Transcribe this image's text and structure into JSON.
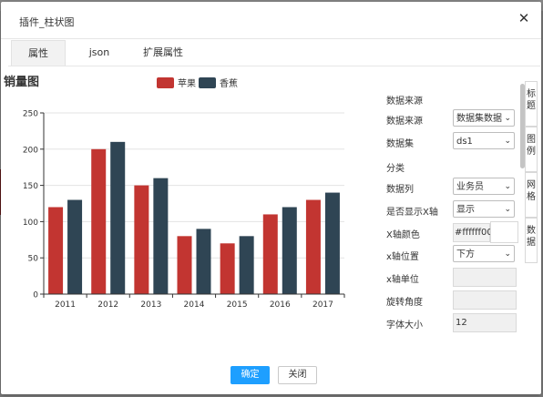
{
  "dialog": {
    "title": "插件_柱状图",
    "close_glyph": "✕"
  },
  "tabs": [
    "属性",
    "json",
    "扩展属性"
  ],
  "chart_data": {
    "type": "bar",
    "title": "销量图",
    "categories": [
      "2011",
      "2012",
      "2013",
      "2014",
      "2015",
      "2016",
      "2017"
    ],
    "series": [
      {
        "name": "苹果",
        "color": "#c23531",
        "values": [
          120,
          200,
          150,
          80,
          70,
          110,
          130
        ]
      },
      {
        "name": "香蕉",
        "color": "#2f4554",
        "values": [
          130,
          210,
          160,
          90,
          80,
          120,
          140
        ]
      }
    ],
    "ylim": [
      0,
      250
    ],
    "yticks": [
      0,
      50,
      100,
      150,
      200,
      250
    ],
    "grid": true,
    "legend": "top-center"
  },
  "panel": {
    "section_datasource": "数据来源",
    "datasource_label": "数据来源",
    "datasource_value": "数据集数据",
    "dataset_label": "数据集",
    "dataset_value": "ds1",
    "section_category": "分类",
    "datacol_label": "数据列",
    "datacol_value": "业务员",
    "showx_label": "是否显示X轴",
    "showx_value": "显示",
    "xcolor_label": "X轴颜色",
    "xcolor_value": "#ffffff00",
    "xpos_label": "x轴位置",
    "xpos_value": "下方",
    "xunit_label": "x轴单位",
    "xunit_value": "",
    "rotate_label": "旋转角度",
    "rotate_value": "",
    "fontsize_label": "字体大小",
    "fontsize_value": "12",
    "select_chevron": "⌄"
  },
  "side_tabs": [
    "标题",
    "图例",
    "网格",
    "数据"
  ],
  "buttons": {
    "ok": "确定",
    "close": "关闭"
  },
  "colors": {
    "primary": "#1e9fff",
    "apple": "#c23531",
    "banana": "#2f4554"
  }
}
